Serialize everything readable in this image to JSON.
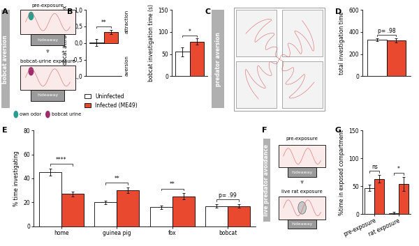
{
  "diagrams": [
    {
      "panel": "A",
      "side_label": "bobcat aversion",
      "stages": [
        "pre-exposure",
        "bobcat-urine exposure"
      ],
      "box_label": "hideaway",
      "key": [
        {
          "label": "own odor",
          "color": "#2a9d8f"
        },
        {
          "label": "bobcat urine",
          "color": "#9b2d6f"
        }
      ]
    },
    {
      "panel": "C",
      "side_label": "predator aversion"
    },
    {
      "panel": "F",
      "side_label": "live predator avoidance",
      "stages": [
        "pre-exposure",
        "live rat exposure"
      ],
      "box_label": "hideaway"
    }
  ],
  "chart_data": [
    {
      "panel": "B",
      "type": "bar",
      "ylabel": "log₂ bobcat attraction index",
      "categories": [
        null
      ],
      "series": [
        {
          "name": "Uninfected",
          "color": "#ffffff",
          "values": [
            0.02
          ],
          "errors": [
            0.1
          ]
        },
        {
          "name": "Infected (ME49)",
          "color": "#e8492f",
          "values": [
            0.33
          ],
          "errors": [
            0.06
          ]
        }
      ],
      "ylim": [
        -1,
        1
      ],
      "yticks": [
        {
          "value": -1,
          "label": "-1,0"
        },
        {
          "value": -0.5,
          "label": "-0,5"
        },
        {
          "value": 0,
          "label": "0,0"
        },
        {
          "value": 0.5,
          "label": "0,5"
        },
        {
          "value": 1,
          "label": "1,0"
        }
      ],
      "annotations": [
        "**"
      ],
      "side_labels": [
        "attraction",
        "aversion"
      ]
    },
    {
      "type": "bar",
      "ylabel": "bobcat investigation time (s)",
      "categories": [
        null
      ],
      "series": [
        {
          "name": "Uninfected",
          "color": "#ffffff",
          "values": [
            55
          ],
          "errors": [
            10
          ]
        },
        {
          "name": "Infected (ME49)",
          "color": "#e8492f",
          "values": [
            78
          ],
          "errors": [
            7
          ]
        }
      ],
      "ylim": [
        0,
        150
      ],
      "yticks": [
        0,
        50,
        100,
        150
      ],
      "annotations": [
        "*"
      ]
    },
    {
      "panel": "D",
      "type": "bar",
      "ylabel": "total investigation time",
      "categories": [
        null
      ],
      "series": [
        {
          "name": "Uninfected",
          "color": "#ffffff",
          "values": [
            330
          ],
          "errors": [
            10
          ]
        },
        {
          "name": "Infected (ME49)",
          "color": "#e8492f",
          "values": [
            325
          ],
          "errors": [
            20
          ]
        }
      ],
      "ylim": [
        0,
        600
      ],
      "yticks": [
        0,
        200,
        400,
        600
      ],
      "annotations": [
        "p= .98"
      ]
    },
    {
      "panel": "E",
      "type": "bar",
      "ylabel": "% time investigating",
      "categories": [
        "home",
        "guinea pig",
        "fox",
        "bobcat"
      ],
      "series": [
        {
          "name": "Uninfected",
          "color": "#ffffff",
          "values": [
            45,
            20,
            16,
            17
          ],
          "errors": [
            3,
            1.5,
            1.5,
            1.5
          ]
        },
        {
          "name": "Infected (ME49)",
          "color": "#e8492f",
          "values": [
            27,
            30,
            25,
            17
          ],
          "errors": [
            2,
            2.5,
            2.5,
            1.5
          ]
        }
      ],
      "ylim": [
        0,
        80
      ],
      "yticks": [
        0,
        20,
        40,
        60,
        80
      ],
      "annotations": [
        "****",
        "**",
        "**",
        "p= .99"
      ]
    },
    {
      "panel": "G",
      "type": "bar",
      "ylabel": "%time in exposed compartment",
      "categories": [
        "pre-exposure",
        "rat exposure"
      ],
      "series": [
        {
          "name": "Uninfected",
          "color": "#ffffff",
          "values": [
            47,
            2
          ],
          "errors": [
            6,
            2
          ]
        },
        {
          "name": "Infected (ME49)",
          "color": "#e8492f",
          "values": [
            63,
            54
          ],
          "errors": [
            7,
            12
          ]
        }
      ],
      "ylim": [
        0,
        150
      ],
      "yticks": [
        0,
        50,
        100,
        150
      ],
      "annotations": [
        "ns",
        "*"
      ]
    }
  ]
}
